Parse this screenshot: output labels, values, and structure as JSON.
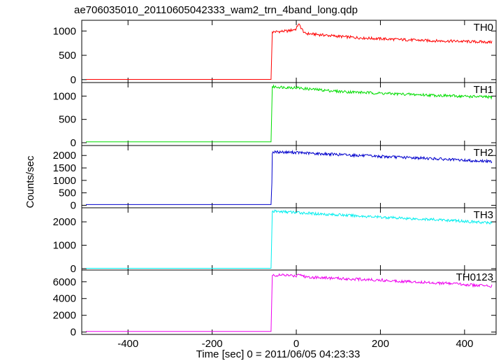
{
  "title": "ae706035010_20110605042333_wam2_trn_4band_long.qdp",
  "xlabel": "Time [sec] 0 = 2011/06/05 04:23:33",
  "ylabel": "Counts/sec",
  "chart_data": {
    "type": "line",
    "title": "ae706035010_20110605042333_wam2_trn_4band_long.qdp",
    "xlabel": "Time [sec] 0 = 2011/06/05 04:23:33",
    "ylabel": "Counts/sec",
    "xlim": [
      -510,
      475
    ],
    "x_ticks": [
      -400,
      -200,
      0,
      200,
      400
    ],
    "grid": false,
    "panels": [
      {
        "name": "TH0",
        "color": "#ff0000",
        "ylim": [
          -60,
          1220
        ],
        "y_ticks": [
          0,
          500,
          1000
        ],
        "segments": [
          {
            "x": [
              -500,
              -60
            ],
            "y": [
              5,
              5
            ]
          },
          {
            "x": [
              -60,
              -57,
              -40,
              -20,
              0,
              5,
              20,
              60,
              100,
              150,
              200,
              260,
              320,
              380,
              420,
              465
            ],
            "y": [
              5,
              980,
              990,
              1000,
              1040,
              1150,
              950,
              920,
              890,
              860,
              840,
              820,
              800,
              790,
              780,
              770
            ]
          }
        ]
      },
      {
        "name": "TH1",
        "color": "#00dd00",
        "ylim": [
          -60,
          1290
        ],
        "y_ticks": [
          0,
          500,
          1000
        ],
        "segments": [
          {
            "x": [
              -500,
              -60
            ],
            "y": [
              20,
              20
            ]
          },
          {
            "x": [
              -60,
              -57,
              -30,
              0,
              20,
              60,
              100,
              150,
              200,
              260,
              320,
              380,
              420,
              465
            ],
            "y": [
              20,
              1200,
              1190,
              1180,
              1160,
              1130,
              1100,
              1080,
              1060,
              1040,
              1020,
              1000,
              990,
              975
            ]
          }
        ]
      },
      {
        "name": "TH2",
        "color": "#0000cc",
        "ylim": [
          -100,
          2400
        ],
        "y_ticks": [
          0,
          500,
          1000,
          1500,
          2000
        ],
        "segments": [
          {
            "x": [
              -500,
              -60
            ],
            "y": [
              30,
              30
            ]
          },
          {
            "x": [
              -60,
              -58,
              -57,
              -40,
              0,
              40,
              100,
              150,
              200,
              260,
              320,
              380,
              420,
              465
            ],
            "y": [
              30,
              900,
              2130,
              2140,
              2120,
              2080,
              2040,
              2000,
              1960,
              1920,
              1880,
              1820,
              1790,
              1760
            ]
          }
        ]
      },
      {
        "name": "TH3",
        "color": "#00eeee",
        "ylim": [
          -60,
          2600
        ],
        "y_ticks": [
          0,
          1000,
          2000
        ],
        "segments": [
          {
            "x": [
              -500,
              -60
            ],
            "y": [
              15,
              15
            ]
          },
          {
            "x": [
              -60,
              -57,
              -30,
              0,
              40,
              100,
              150,
              200,
              260,
              320,
              380,
              420,
              465
            ],
            "y": [
              15,
              2450,
              2430,
              2400,
              2350,
              2300,
              2250,
              2200,
              2150,
              2100,
              2050,
              2000,
              1950
            ]
          }
        ]
      },
      {
        "name": "TH0123",
        "color": "#ee00ee",
        "ylim": [
          -280,
          7400
        ],
        "y_ticks": [
          0,
          2000,
          4000,
          6000
        ],
        "segments": [
          {
            "x": [
              -500,
              -60
            ],
            "y": [
              70,
              70
            ]
          },
          {
            "x": [
              -60,
              -57,
              -30,
              0,
              5,
              20,
              60,
              100,
              150,
              200,
              260,
              320,
              380,
              420,
              465
            ],
            "y": [
              70,
              6750,
              6800,
              6700,
              7000,
              6600,
              6500,
              6400,
              6300,
              6200,
              6050,
              5900,
              5750,
              5600,
              5500
            ]
          }
        ]
      }
    ]
  }
}
